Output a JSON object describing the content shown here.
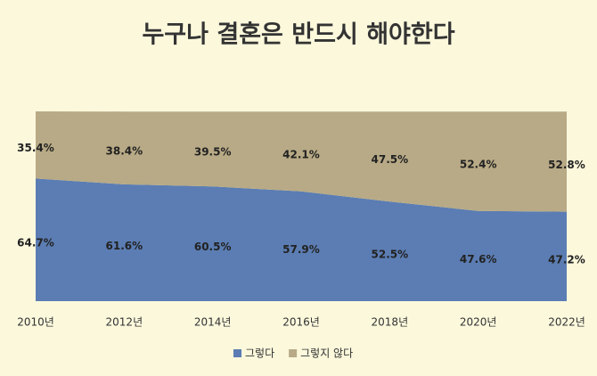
{
  "chart_data": {
    "type": "area",
    "stacked": true,
    "title": "누구나 결혼은 반드시 해야한다",
    "categories": [
      "2010년",
      "2012년",
      "2014년",
      "2016년",
      "2018년",
      "2020년",
      "2022년"
    ],
    "series": [
      {
        "name": "그렇다",
        "color": "#5b7db3",
        "values": [
          64.7,
          61.6,
          60.5,
          57.9,
          52.5,
          47.6,
          47.2
        ],
        "value_labels": [
          "64.7%",
          "61.6%",
          "60.5%",
          "57.9%",
          "52.5%",
          "47.6%",
          "47.2%"
        ]
      },
      {
        "name": "그렇지 않다",
        "color": "#b8aa86",
        "values": [
          35.4,
          38.4,
          39.5,
          42.1,
          47.5,
          52.4,
          52.8
        ],
        "value_labels": [
          "35.4%",
          "38.4%",
          "39.5%",
          "42.1%",
          "47.5%",
          "52.4%",
          "52.8%"
        ]
      }
    ]
  }
}
